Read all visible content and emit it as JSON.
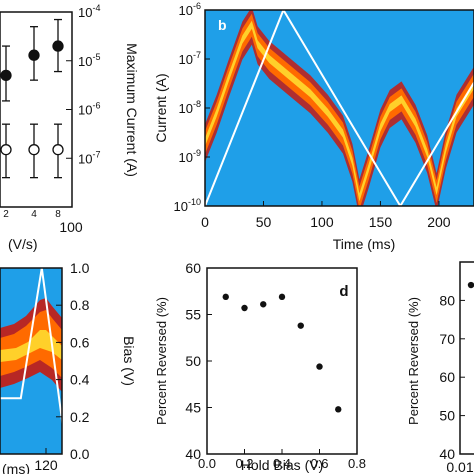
{
  "chart_data": [
    {
      "panel": "a",
      "type": "scatter",
      "xlabel_fragment": "(V/s)",
      "ylabel": "Maximum Current (A)",
      "x_ticks": [
        "2",
        "4",
        "8",
        "100"
      ],
      "y_ticks_right": [
        "10",
        "10",
        "10",
        "10"
      ],
      "y_tick_exponents": [
        "-4",
        "-5",
        "-6",
        "-7"
      ],
      "yscale": "log",
      "ylim": [
        1e-08,
        0.0001
      ],
      "series": [
        {
          "marker": "filled",
          "points": [
            {
              "x": 1,
              "y": 5e-06,
              "err": [
                1.5e-06,
                2e-05
              ]
            },
            {
              "x": 4,
              "y": 1.3e-05,
              "err": [
                4e-06,
                5e-05
              ]
            },
            {
              "x": 8,
              "y": 2e-05,
              "err": [
                6e-06,
                7e-05
              ]
            }
          ]
        },
        {
          "marker": "open",
          "points": [
            {
              "x": 1,
              "y": 1.5e-07,
              "err": [
                4e-08,
                5e-07
              ]
            },
            {
              "x": 4,
              "y": 1.5e-07,
              "err": [
                4e-08,
                5e-07
              ]
            },
            {
              "x": 8,
              "y": 1.5e-07,
              "err": [
                4e-08,
                5e-07
              ]
            }
          ]
        }
      ]
    },
    {
      "panel": "b",
      "type": "heatmap",
      "panel_label": "b",
      "xlabel": "Time (ms)",
      "ylabel": "Current (A)",
      "x_ticks": [
        "0",
        "50",
        "100",
        "150",
        "200"
      ],
      "y_ticks": [
        "10",
        "10",
        "10",
        "10",
        "10"
      ],
      "y_tick_exponents": [
        "-6",
        "-7",
        "-8",
        "-9",
        "-10"
      ],
      "xlim": [
        0,
        230
      ],
      "ylim": [
        1e-10,
        1e-06
      ],
      "yscale": "log",
      "density_band": [
        [
          0,
          2e-09
        ],
        [
          10,
          8e-09
        ],
        [
          20,
          4e-08
        ],
        [
          32,
          2.5e-07
        ],
        [
          40,
          5e-07
        ],
        [
          45,
          2e-07
        ],
        [
          55,
          1e-07
        ],
        [
          70,
          5e-08
        ],
        [
          90,
          2e-08
        ],
        [
          105,
          8e-09
        ],
        [
          118,
          3e-09
        ],
        [
          126,
          8e-10
        ],
        [
          132,
          1.5e-10
        ],
        [
          140,
          6e-10
        ],
        [
          150,
          4e-09
        ],
        [
          158,
          1e-08
        ],
        [
          168,
          1.5e-08
        ],
        [
          180,
          5e-09
        ],
        [
          190,
          1.2e-09
        ],
        [
          198,
          2e-10
        ],
        [
          206,
          1.5e-09
        ],
        [
          215,
          8e-09
        ],
        [
          230,
          3e-08
        ]
      ],
      "bias_trace": [
        [
          0,
          0
        ],
        [
          67,
          1
        ],
        [
          167,
          0
        ],
        [
          230,
          0.63
        ]
      ]
    },
    {
      "panel": "c",
      "type": "heatmap",
      "ylabel_right": "Bias (V)",
      "x_ticks": [
        "120"
      ],
      "xlabel_fragment": "(ms)",
      "y_ticks": [
        "1.0",
        "0.8",
        "0.6",
        "0.4",
        "0.2",
        "0.0"
      ],
      "ylim": [
        0,
        1
      ],
      "bias_trace": [
        [
          95,
          0.3
        ],
        [
          108,
          0.3
        ],
        [
          118,
          1.0
        ],
        [
          128,
          0.15
        ]
      ]
    },
    {
      "panel": "d",
      "type": "scatter",
      "panel_label": "d",
      "xlabel": "Hold Bias (V)",
      "ylabel": "Percent Reversed (%)",
      "x_ticks": [
        "0.0",
        "0.2",
        "0.4",
        "0.6",
        "0.8"
      ],
      "y_ticks": [
        "40",
        "45",
        "50",
        "55",
        "60"
      ],
      "xlim": [
        0,
        0.8
      ],
      "ylim": [
        40,
        60
      ],
      "points": [
        {
          "x": 0.1,
          "y": 56.9
        },
        {
          "x": 0.2,
          "y": 55.7
        },
        {
          "x": 0.3,
          "y": 56.1
        },
        {
          "x": 0.4,
          "y": 56.9
        },
        {
          "x": 0.5,
          "y": 53.8
        },
        {
          "x": 0.6,
          "y": 49.4
        },
        {
          "x": 0.7,
          "y": 44.8
        }
      ]
    },
    {
      "panel": "e",
      "type": "scatter",
      "ylabel": "Percent Reversed (%)",
      "x_ticks": [
        "0.01"
      ],
      "y_ticks": [
        "80",
        "70",
        "60",
        "50",
        "40"
      ],
      "ylim": [
        40,
        90
      ],
      "points": [
        {
          "x": 0.01,
          "y": 84
        }
      ]
    }
  ],
  "colors": {
    "heat_bg": "#1f9fe8",
    "heat_core": "#ffd02a",
    "heat_mid": "#ff6a00",
    "heat_edge": "#c01010",
    "trace": "#ffffff"
  }
}
